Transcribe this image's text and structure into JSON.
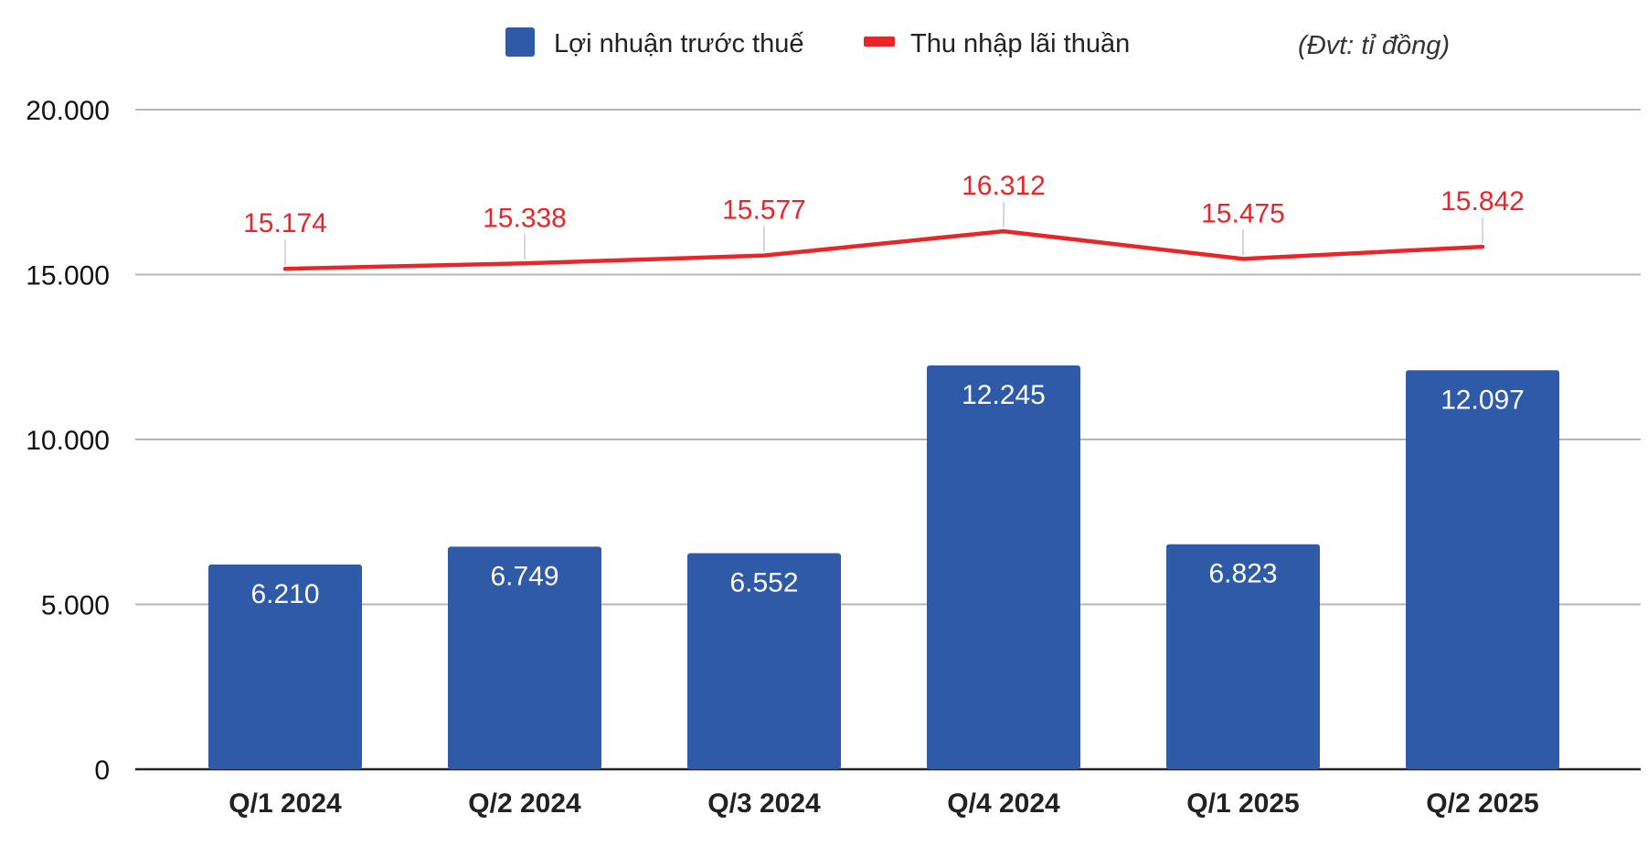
{
  "chart_data": {
    "type": "bar",
    "categories": [
      "Q/1 2024",
      "Q/2 2024",
      "Q/3 2024",
      "Q/4 2024",
      "Q/1 2025",
      "Q/2 2025"
    ],
    "series": [
      {
        "name": "Lợi nhuận trước thuế",
        "type": "bar",
        "color": "#2f5aa8",
        "values": [
          6210,
          6749,
          6552,
          12245,
          6823,
          12097
        ],
        "labels": [
          "6.210",
          "6.749",
          "6.552",
          "12.245",
          "6.823",
          "12.097"
        ]
      },
      {
        "name": "Thu nhập lãi thuần",
        "type": "line",
        "color": "#e8262a",
        "values": [
          15174,
          15338,
          15577,
          16312,
          15475,
          15842
        ],
        "labels": [
          "15.174",
          "15.338",
          "15.577",
          "16.312",
          "15.475",
          "15.842"
        ]
      }
    ],
    "unit_note": "(Đvt: tỉ đồng)",
    "ylim": [
      0,
      20000
    ],
    "yticks": [
      0,
      5000,
      10000,
      15000,
      20000
    ],
    "ytick_labels": [
      "0",
      "5.000",
      "10.000",
      "15.000",
      "20.000"
    ],
    "grid": true,
    "legend_position": "top-center"
  }
}
